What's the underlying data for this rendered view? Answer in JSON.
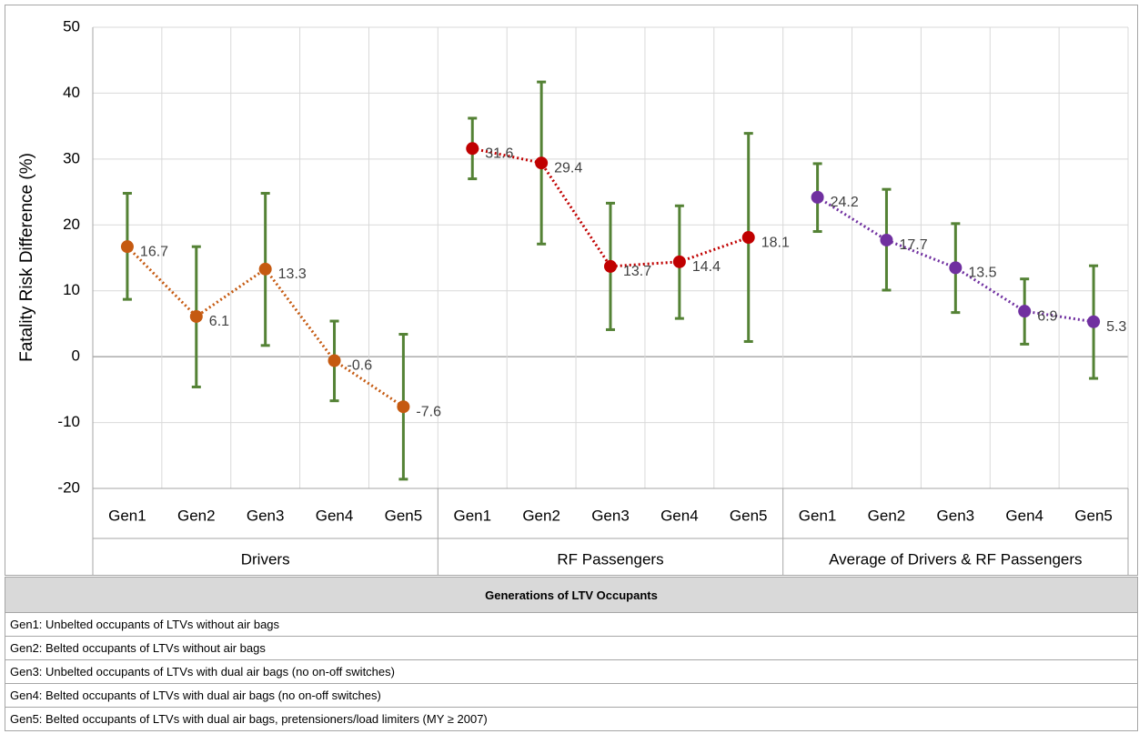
{
  "chart_data": {
    "type": "errorbar-line",
    "ylabel": "Fatality Risk Difference (%)",
    "ylim": [
      -20,
      50
    ],
    "yticks": [
      -20,
      -10,
      0,
      10,
      20,
      30,
      40,
      50
    ],
    "grid": true,
    "error_color": "#548235",
    "groups": [
      {
        "name": "Drivers",
        "color": "#c55a11",
        "categories": [
          "Gen1",
          "Gen2",
          "Gen3",
          "Gen4",
          "Gen5"
        ],
        "values": [
          16.7,
          6.1,
          13.3,
          -0.6,
          -7.6
        ],
        "lower": [
          8.7,
          -4.6,
          1.7,
          -6.7,
          -18.6
        ],
        "upper": [
          24.8,
          16.7,
          24.8,
          5.4,
          3.4
        ]
      },
      {
        "name": "RF Passengers",
        "color": "#c00000",
        "categories": [
          "Gen1",
          "Gen2",
          "Gen3",
          "Gen4",
          "Gen5"
        ],
        "values": [
          31.6,
          29.4,
          13.7,
          14.4,
          18.1
        ],
        "lower": [
          27.0,
          17.1,
          4.1,
          5.8,
          2.3
        ],
        "upper": [
          36.2,
          41.7,
          23.3,
          22.9,
          33.9
        ]
      },
      {
        "name": "Average of Drivers & RF Passengers",
        "color": "#7030a0",
        "categories": [
          "Gen1",
          "Gen2",
          "Gen3",
          "Gen4",
          "Gen5"
        ],
        "values": [
          24.2,
          17.7,
          13.5,
          6.9,
          5.3
        ],
        "lower": [
          19.0,
          10.1,
          6.7,
          1.9,
          -3.3
        ],
        "upper": [
          29.3,
          25.4,
          20.2,
          11.8,
          13.8
        ]
      }
    ]
  },
  "table": {
    "title": "Generations of LTV Occupants",
    "rows": [
      "Gen1: Unbelted occupants of LTVs without air bags",
      "Gen2: Belted occupants of LTVs without air bags",
      "Gen3: Unbelted occupants of LTVs with dual air bags (no on-off switches)",
      "Gen4: Belted occupants of LTVs with dual air bags (no on-off switches)",
      "Gen5: Belted occupants of LTVs with dual air bags, pretensioners/load limiters (MY ≥ 2007)"
    ]
  }
}
